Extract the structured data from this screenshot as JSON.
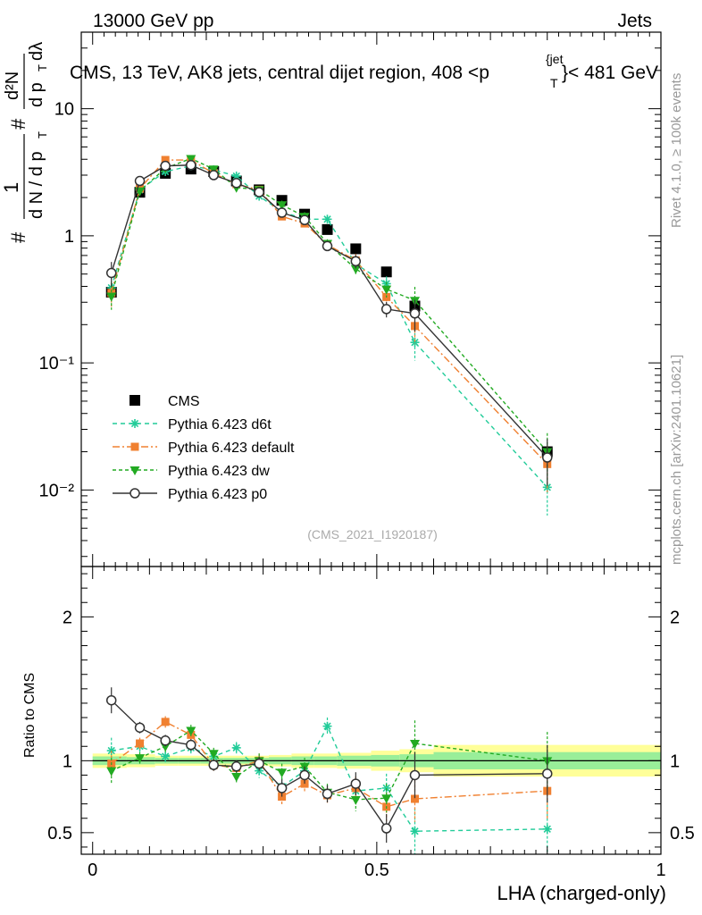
{
  "header": {
    "left": "13000 GeV pp",
    "right": "Jets"
  },
  "side_labels": {
    "rivet": "Rivet 4.1.0, ≥ 100k events",
    "mcplots": "mcplots.cern.ch [arXiv:2401.10621]"
  },
  "colors": {
    "cms": "#000000",
    "d6t": "#22cc99",
    "default": "#f08030",
    "dw": "#22aa22",
    "p0": "#333333",
    "band_inner": "#99ee99",
    "band_outer": "#ffff99"
  },
  "chart_data": [
    {
      "type": "line",
      "panel": "main",
      "title": "CMS, 13 TeV, AK8 jets, central dijet region, 408 < p_T^{jet} < 481 GeV",
      "title_parts": {
        "prefix": "CMS, 13 TeV, AK8 jets, central dijet region, 408 <",
        "p": "p",
        "sub": "T",
        "sup": "{jet",
        "suffix": "}< 481 GeV"
      },
      "ylabel": "(1/dN/dp_T) d^2N/(dp_T dλ)",
      "ylabel_parts": {
        "hash": "#",
        "one": "1",
        "den": "d N / d p",
        "T": "T",
        "num": "d²N",
        "num_den": "d p",
        "lambda": "dλ"
      },
      "yscale": "log",
      "ylim": [
        0.0025,
        40
      ],
      "xlim": [
        -0.02,
        1.0
      ],
      "ytick_labels": [
        "10⁻²",
        "10⁻¹",
        "1",
        "10"
      ],
      "ytick_values": [
        0.01,
        0.1,
        1,
        10
      ],
      "watermark": "(CMS_2021_I1920187)",
      "legend_position": "lower-left",
      "x": [
        0.033,
        0.083,
        0.128,
        0.173,
        0.213,
        0.253,
        0.293,
        0.333,
        0.373,
        0.413,
        0.463,
        0.517,
        0.567,
        0.8
      ],
      "series": [
        {
          "name": "CMS",
          "style": "cms",
          "values": [
            0.36,
            2.2,
            3.1,
            3.35,
            3.2,
            2.7,
            2.3,
            1.9,
            1.48,
            1.12,
            0.79,
            0.52,
            0.28,
            0.02
          ]
        },
        {
          "name": "Pythia 6.423 d6t",
          "style": "d6t",
          "values": [
            0.39,
            2.3,
            3.2,
            3.55,
            3.3,
            2.95,
            2.05,
            1.55,
            1.35,
            1.35,
            0.6,
            0.42,
            0.145,
            0.0105
          ],
          "errors_rel": [
            0.22,
            0.05,
            0.05,
            0.05,
            0.05,
            0.06,
            0.06,
            0.08,
            0.08,
            0.08,
            0.12,
            0.14,
            0.28,
            0.4
          ]
        },
        {
          "name": "Pythia 6.423 default",
          "style": "default",
          "values": [
            0.355,
            2.35,
            3.95,
            3.95,
            3.1,
            2.55,
            2.3,
            1.42,
            1.25,
            0.85,
            0.64,
            0.33,
            0.195,
            0.016
          ],
          "errors_rel": [
            0.22,
            0.05,
            0.05,
            0.05,
            0.05,
            0.06,
            0.06,
            0.08,
            0.08,
            0.08,
            0.12,
            0.14,
            0.28,
            0.4
          ]
        },
        {
          "name": "Pythia 6.423 dw",
          "style": "dw",
          "values": [
            0.335,
            2.25,
            3.4,
            4.05,
            3.35,
            2.4,
            2.3,
            1.75,
            1.42,
            0.87,
            0.55,
            0.38,
            0.31,
            0.02
          ],
          "errors_rel": [
            0.22,
            0.05,
            0.05,
            0.05,
            0.05,
            0.06,
            0.06,
            0.08,
            0.08,
            0.08,
            0.12,
            0.14,
            0.28,
            0.4
          ]
        },
        {
          "name": "Pythia 6.423 p0",
          "style": "p0",
          "values": [
            0.51,
            2.7,
            3.55,
            3.6,
            3.0,
            2.6,
            2.2,
            1.52,
            1.33,
            0.83,
            0.63,
            0.265,
            0.245,
            0.018
          ],
          "errors_rel": [
            0.22,
            0.05,
            0.05,
            0.05,
            0.05,
            0.06,
            0.06,
            0.08,
            0.08,
            0.08,
            0.12,
            0.14,
            0.28,
            0.4
          ]
        }
      ]
    },
    {
      "type": "line",
      "panel": "ratio",
      "ylabel": "Ratio to CMS",
      "xlabel": "LHA (charged-only)",
      "ylim": [
        0.35,
        2.35
      ],
      "xlim": [
        -0.02,
        1.0
      ],
      "ytick_labels": [
        "0.5",
        "1",
        "2"
      ],
      "ytick_values": [
        0.5,
        1,
        2
      ],
      "xtick_labels": [
        "0",
        "0.5",
        "1"
      ],
      "xtick_values": [
        0,
        0.5,
        1
      ],
      "band_edges": [
        0,
        0.06,
        0.11,
        0.15,
        0.19,
        0.23,
        0.27,
        0.31,
        0.35,
        0.39,
        0.43,
        0.49,
        0.54,
        0.6,
        1.0
      ],
      "band_inner": [
        0.03,
        0.025,
        0.02,
        0.02,
        0.02,
        0.02,
        0.02,
        0.025,
        0.03,
        0.03,
        0.035,
        0.04,
        0.045,
        0.06
      ],
      "band_outer": [
        0.05,
        0.045,
        0.035,
        0.035,
        0.035,
        0.035,
        0.035,
        0.04,
        0.05,
        0.05,
        0.055,
        0.07,
        0.08,
        0.11
      ],
      "x": [
        0.033,
        0.083,
        0.128,
        0.173,
        0.213,
        0.253,
        0.293,
        0.333,
        0.373,
        0.413,
        0.463,
        0.517,
        0.567,
        0.8
      ],
      "series": [
        {
          "name": "Pythia 6.423 d6t",
          "style": "d6t",
          "values": [
            1.07,
            1.1,
            1.03,
            1.09,
            1.03,
            1.09,
            0.93,
            0.82,
            0.93,
            1.24,
            0.79,
            0.81,
            0.51,
            0.525
          ],
          "errors": [
            0.09,
            0.04,
            0.04,
            0.04,
            0.04,
            0.04,
            0.05,
            0.06,
            0.06,
            0.06,
            0.08,
            0.1,
            0.16,
            0.2
          ]
        },
        {
          "name": "Pythia 6.423 default",
          "style": "default",
          "values": [
            0.98,
            1.12,
            1.27,
            1.18,
            0.97,
            0.95,
            1.0,
            0.75,
            0.84,
            0.76,
            0.81,
            0.68,
            0.735,
            0.79
          ],
          "errors": [
            0.09,
            0.04,
            0.04,
            0.04,
            0.04,
            0.04,
            0.05,
            0.06,
            0.06,
            0.06,
            0.08,
            0.1,
            0.16,
            0.2
          ]
        },
        {
          "name": "Pythia 6.423 dw",
          "style": "dw",
          "values": [
            0.93,
            1.02,
            1.1,
            1.21,
            1.05,
            0.89,
            1.0,
            0.92,
            0.96,
            0.78,
            0.73,
            0.74,
            1.12,
            1.0
          ],
          "errors": [
            0.09,
            0.04,
            0.04,
            0.04,
            0.04,
            0.04,
            0.05,
            0.06,
            0.06,
            0.06,
            0.08,
            0.1,
            0.16,
            0.2
          ]
        },
        {
          "name": "Pythia 6.423 p0",
          "style": "p0",
          "values": [
            1.42,
            1.23,
            1.14,
            1.11,
            0.97,
            0.96,
            0.98,
            0.81,
            0.9,
            0.77,
            0.84,
            0.53,
            0.9,
            0.91
          ],
          "errors": [
            0.09,
            0.04,
            0.04,
            0.04,
            0.04,
            0.04,
            0.05,
            0.06,
            0.06,
            0.06,
            0.08,
            0.1,
            0.16,
            0.2
          ]
        }
      ]
    }
  ]
}
